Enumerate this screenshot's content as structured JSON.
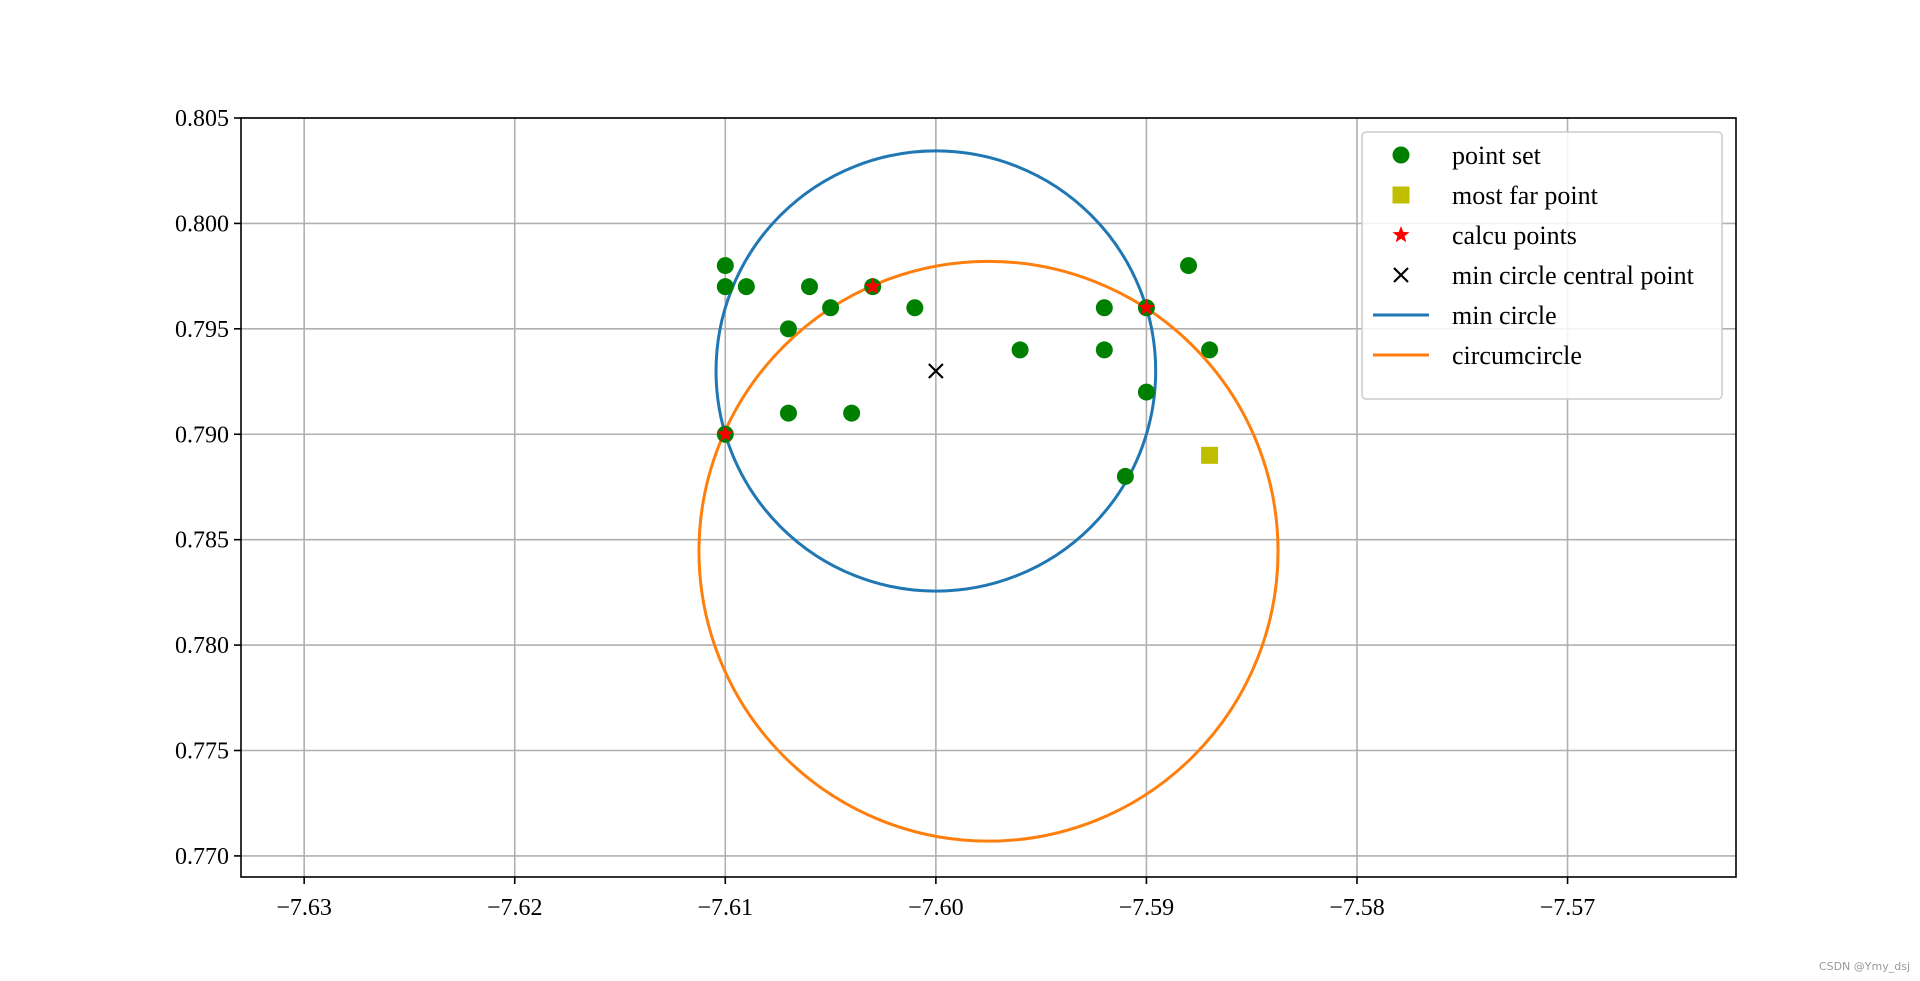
{
  "chart_data": {
    "type": "scatter",
    "title": "",
    "xlabel": "",
    "ylabel": "",
    "xlim": [
      -7.633,
      -7.562
    ],
    "ylim": [
      0.769,
      0.805
    ],
    "xticks": [
      -7.63,
      -7.62,
      -7.61,
      -7.6,
      -7.59,
      -7.58,
      -7.57
    ],
    "xtick_labels": [
      "−7.63",
      "−7.62",
      "−7.61",
      "−7.60",
      "−7.59",
      "−7.58",
      "−7.57"
    ],
    "yticks": [
      0.77,
      0.775,
      0.78,
      0.785,
      0.79,
      0.795,
      0.8,
      0.805
    ],
    "ytick_labels": [
      "0.770",
      "0.775",
      "0.780",
      "0.785",
      "0.790",
      "0.795",
      "0.800",
      "0.805"
    ],
    "grid": true,
    "legend_position": "top-right",
    "series": [
      {
        "name": "point set",
        "kind": "markers",
        "marker": "circle",
        "color": "#008000",
        "points": [
          [
            -7.61,
            0.798
          ],
          [
            -7.61,
            0.797
          ],
          [
            -7.609,
            0.797
          ],
          [
            -7.607,
            0.795
          ],
          [
            -7.606,
            0.797
          ],
          [
            -7.605,
            0.796
          ],
          [
            -7.603,
            0.797
          ],
          [
            -7.601,
            0.796
          ],
          [
            -7.61,
            0.79
          ],
          [
            -7.607,
            0.791
          ],
          [
            -7.604,
            0.791
          ],
          [
            -7.596,
            0.794
          ],
          [
            -7.592,
            0.796
          ],
          [
            -7.592,
            0.794
          ],
          [
            -7.59,
            0.796
          ],
          [
            -7.59,
            0.792
          ],
          [
            -7.591,
            0.788
          ],
          [
            -7.588,
            0.798
          ],
          [
            -7.587,
            0.794
          ]
        ]
      },
      {
        "name": "most far point",
        "kind": "markers",
        "marker": "square",
        "color": "#bfbf00",
        "points": [
          [
            -7.587,
            0.789
          ]
        ]
      },
      {
        "name": "calcu points",
        "kind": "markers",
        "marker": "star",
        "color": "#ff0000",
        "points": [
          [
            -7.61,
            0.79
          ],
          [
            -7.603,
            0.797
          ],
          [
            -7.59,
            0.796
          ]
        ]
      },
      {
        "name": "min circle central point",
        "kind": "markers",
        "marker": "x",
        "color": "#000000",
        "points": [
          [
            -7.6,
            0.793
          ]
        ]
      },
      {
        "name": "min circle",
        "kind": "circle",
        "color": "#1f77b4",
        "center": [
          -7.6,
          0.793
        ],
        "radius": 0.01044
      },
      {
        "name": "circumcircle",
        "kind": "circle",
        "color": "#ff7f0e",
        "center": [
          -7.5975,
          0.78445
        ],
        "radius": 0.01375
      }
    ]
  },
  "watermark": "CSDN @Ymy_dsj"
}
